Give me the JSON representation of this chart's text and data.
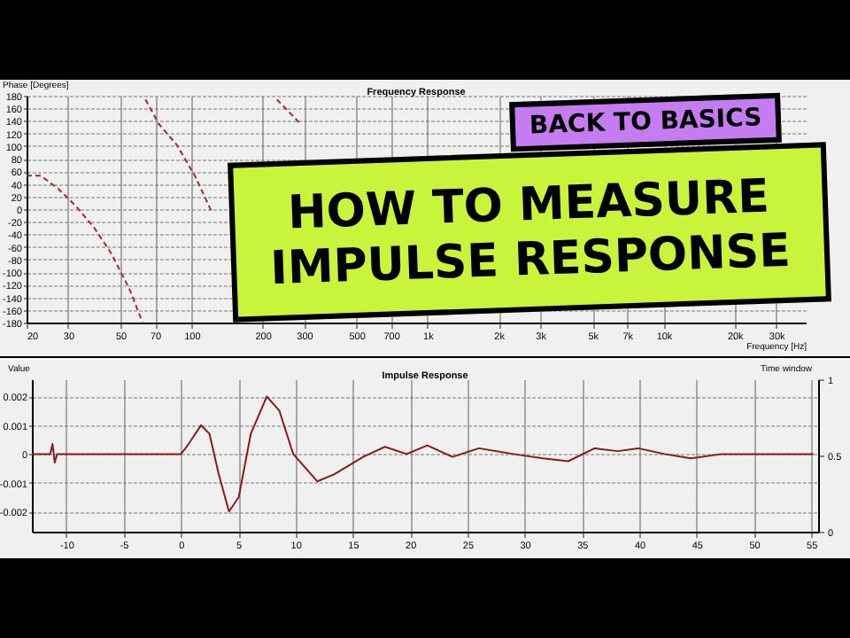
{
  "chart_data": [
    {
      "type": "line",
      "title": "Frequency Response",
      "xlabel": "Frequency [Hz]",
      "ylabel": "Phase [Degrees]",
      "annotations": [
        "BACK TO BASICS",
        "HOW TO MEASURE IMPULSE RESPONSE"
      ],
      "log": "x",
      "grid": true,
      "line_style": "dashed",
      "xlim": [
        20,
        40000
      ],
      "ylim": [
        -180,
        180
      ],
      "xticks": [
        20,
        30,
        50,
        70,
        100,
        200,
        300,
        500,
        700,
        {
          "value": 1000,
          "label": "1k"
        },
        {
          "value": 2000,
          "label": "2k"
        },
        {
          "value": 3000,
          "label": "3k"
        },
        {
          "value": 5000,
          "label": "5k"
        },
        {
          "value": 7000,
          "label": "7k"
        },
        {
          "value": 10000,
          "label": "10k"
        },
        {
          "value": 20000,
          "label": "20k"
        },
        {
          "value": 30000,
          "label": "30k"
        }
      ],
      "yticks": [
        -180,
        -160,
        -140,
        -120,
        -100,
        -80,
        -60,
        -40,
        -20,
        0,
        20,
        40,
        60,
        80,
        100,
        120,
        140,
        160,
        180
      ],
      "series": [
        {
          "color": "#a52a2a",
          "x": [
            20,
            23,
            27.3,
            32.5,
            38.6,
            45.8,
            54.6,
            61.9
          ],
          "values": [
            53,
            53,
            32,
            4,
            -29,
            -71,
            -127,
            -179
          ]
        },
        {
          "color": "#a52a2a",
          "x": [
            63.8,
            72.7,
            86.6,
            103.9,
            122.3
          ],
          "values": [
            174,
            135,
            102,
            51,
            -6
          ]
        },
        {
          "color": "#a52a2a",
          "x": [
            230,
            290
          ],
          "values": [
            174,
            135
          ]
        }
      ]
    },
    {
      "type": "line",
      "title": "Impulse Response",
      "ylabel": "Value",
      "y2label": "Time window",
      "grid": true,
      "xlim": [
        -13,
        55.6
      ],
      "ylim": [
        -0.0027,
        0.0026
      ],
      "y2lim": [
        0,
        1
      ],
      "xticks": [
        -10,
        -5,
        0,
        5,
        10,
        15,
        20,
        25,
        30,
        35,
        40,
        45,
        50,
        55
      ],
      "yticks": [
        -0.002,
        -0.001,
        0,
        0.001,
        0.002
      ],
      "y2ticks": [
        0,
        0.5,
        1
      ],
      "series": [
        {
          "color": "#8b1a1a",
          "x": [
            -13,
            -11.4,
            -11.2,
            -11,
            -10.8,
            0,
            0.5,
            1.76,
            2.5,
            3.3,
            4.2,
            5.05,
            6.1,
            7.5,
            8.6,
            9.8,
            11.9,
            13.4,
            15.9,
            17.8,
            19.7,
            21.5,
            23.7,
            26,
            29,
            31.6,
            33.8,
            36.1,
            38.1,
            39.9,
            42.2,
            44.5,
            47.2,
            49.8,
            55.2
          ],
          "values": [
            0,
            0,
            0.00035,
            -0.0003,
            0,
            0,
            0.00025,
            0.001,
            0.0007,
            -0.0007,
            -0.002,
            -0.0015,
            0.0007,
            0.002,
            0.0015,
            0,
            -0.00095,
            -0.0007,
            -0.0001,
            0.00025,
            0,
            0.0003,
            -0.0001,
            0.0002,
            0,
            -0.00015,
            -0.00025,
            0.0002,
            0.0001,
            0.0002,
            0,
            -0.00015,
            0,
            0,
            0
          ]
        }
      ]
    }
  ]
}
